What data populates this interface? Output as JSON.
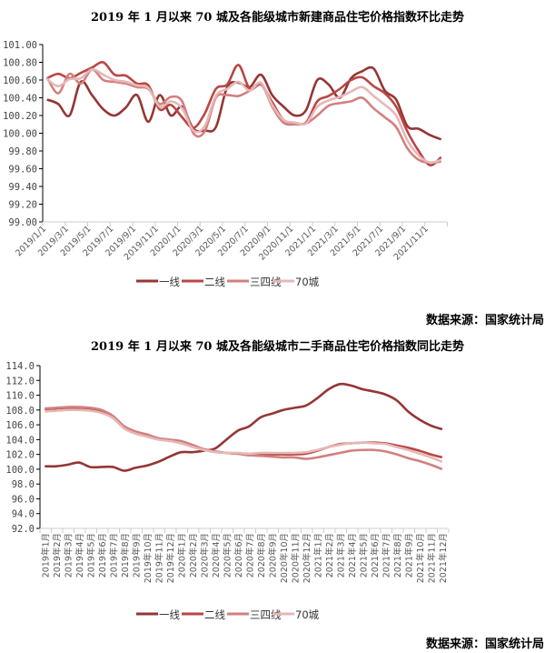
{
  "charts_meta": {
    "source": "数据来源：国家统计局"
  },
  "chart_data": [
    {
      "type": "line",
      "title": "2019 年 1 月以来 70 城及各能级城市新建商品住宅价格指数环比走势",
      "ylim": [
        99.0,
        101.0
      ],
      "yticks": [
        "101.00",
        "100.80",
        "100.60",
        "100.40",
        "100.20",
        "100.00",
        "99.80",
        "99.60",
        "99.40",
        "99.20",
        "99.00"
      ],
      "xticks": [
        "2019/1/1",
        "2019/3/1",
        "2019/5/1",
        "2019/7/1",
        "2019/9/1",
        "2019/11/1",
        "2020/1/1",
        "2020/3/1",
        "2020/5/1",
        "2020/7/1",
        "2020/9/1",
        "2020/11/1",
        "2021/1/1",
        "2021/3/1",
        "2021/5/1",
        "2021/7/1",
        "2021/9/1",
        "2021/11/1"
      ],
      "legend": "bottom",
      "series": [
        {
          "name": "一线",
          "color": "#943634",
          "values": [
            100.38,
            100.33,
            100.2,
            100.58,
            100.43,
            100.27,
            100.2,
            100.29,
            100.43,
            100.13,
            100.43,
            100.2,
            100.3,
            100.05,
            100.03,
            100.07,
            100.52,
            100.57,
            100.52,
            100.66,
            100.43,
            100.3,
            100.2,
            100.26,
            100.6,
            100.55,
            100.4,
            100.62,
            100.7,
            100.73,
            100.48,
            100.38,
            100.08,
            100.05,
            99.98,
            99.93
          ]
        },
        {
          "name": "二线",
          "color": "#b84744",
          "values": [
            100.62,
            100.67,
            100.62,
            100.68,
            100.74,
            100.8,
            100.66,
            100.65,
            100.56,
            100.54,
            100.27,
            100.32,
            100.18,
            100.06,
            100.22,
            100.5,
            100.55,
            100.77,
            100.5,
            100.55,
            100.35,
            100.15,
            100.12,
            100.12,
            100.36,
            100.42,
            100.5,
            100.6,
            100.63,
            100.53,
            100.45,
            100.3,
            100.02,
            99.8,
            99.64,
            99.73
          ]
        },
        {
          "name": "三四线",
          "color": "#d2807e",
          "values": [
            100.63,
            100.45,
            100.67,
            100.56,
            100.72,
            100.6,
            100.58,
            100.56,
            100.52,
            100.5,
            100.33,
            100.41,
            100.36,
            100.0,
            100.02,
            100.4,
            100.43,
            100.42,
            100.48,
            100.56,
            100.3,
            100.12,
            100.1,
            100.11,
            100.2,
            100.31,
            100.34,
            100.36,
            100.4,
            100.28,
            100.18,
            100.07,
            99.83,
            99.7,
            99.67,
            99.68
          ]
        },
        {
          "name": "70城",
          "color": "#e6b8b7",
          "values": [
            100.61,
            100.53,
            100.61,
            100.62,
            100.72,
            100.66,
            100.6,
            100.58,
            100.54,
            100.51,
            100.3,
            100.36,
            100.28,
            100.03,
            100.08,
            100.42,
            100.5,
            100.58,
            100.48,
            100.57,
            100.32,
            100.15,
            100.12,
            100.11,
            100.3,
            100.37,
            100.41,
            100.47,
            100.52,
            100.42,
            100.32,
            100.2,
            99.92,
            99.75,
            99.67,
            99.7
          ]
        }
      ]
    },
    {
      "type": "line",
      "title": "2019 年 1 月以来 70 城及各能级城市二手商品住宅价格指数同比走势",
      "ylim": [
        92.0,
        114.0
      ],
      "yticks": [
        "114.0",
        "112.0",
        "110.0",
        "108.0",
        "106.0",
        "104.0",
        "102.0",
        "100.0",
        "98.0",
        "96.0",
        "94.0",
        "92.0"
      ],
      "categories": [
        "2019年1月",
        "2019年2月",
        "2019年3月",
        "2019年4月",
        "2019年5月",
        "2019年6月",
        "2019年7月",
        "2019年8月",
        "2019年9月",
        "2019年10月",
        "2019年11月",
        "2019年12月",
        "2020年1月",
        "2020年2月",
        "2020年3月",
        "2020年4月",
        "2020年5月",
        "2020年6月",
        "2020年7月",
        "2020年8月",
        "2020年9月",
        "2020年10月",
        "2020年11月",
        "2020年12月",
        "2021年1月",
        "2021年2月",
        "2021年3月",
        "2021年4月",
        "2021年5月",
        "2021年6月",
        "2021年7月",
        "2021年8月",
        "2021年9月",
        "2021年10月",
        "2021年11月",
        "2021年12月"
      ],
      "legend": "bottom",
      "series": [
        {
          "name": "一线",
          "color": "#943634",
          "values": [
            100.4,
            100.4,
            100.6,
            100.9,
            100.3,
            100.3,
            100.3,
            99.8,
            100.2,
            100.5,
            101.0,
            101.7,
            102.3,
            102.3,
            102.5,
            102.8,
            104.0,
            105.2,
            105.8,
            107.0,
            107.5,
            108.0,
            108.3,
            108.6,
            109.6,
            110.8,
            111.5,
            111.3,
            110.8,
            110.5,
            110.1,
            109.3,
            107.8,
            106.7,
            105.9,
            105.4
          ]
        },
        {
          "name": "二线",
          "color": "#b84744",
          "values": [
            108.1,
            108.2,
            108.3,
            108.3,
            108.2,
            107.9,
            107.1,
            105.7,
            105.0,
            104.6,
            104.1,
            103.9,
            103.7,
            103.2,
            102.7,
            102.4,
            102.2,
            102.1,
            101.9,
            102.0,
            102.0,
            102.0,
            102.0,
            102.1,
            102.5,
            103.0,
            103.4,
            103.5,
            103.6,
            103.6,
            103.5,
            103.2,
            102.9,
            102.5,
            102.0,
            101.6
          ]
        },
        {
          "name": "三四线",
          "color": "#d2807e",
          "values": [
            108.2,
            108.3,
            108.4,
            108.4,
            108.3,
            108.0,
            107.2,
            105.8,
            105.1,
            104.7,
            104.2,
            104.0,
            103.8,
            103.3,
            102.7,
            102.4,
            102.2,
            102.1,
            101.9,
            101.8,
            101.7,
            101.6,
            101.6,
            101.4,
            101.6,
            101.9,
            102.2,
            102.5,
            102.6,
            102.6,
            102.4,
            102.0,
            101.5,
            101.1,
            100.6,
            100.0
          ]
        },
        {
          "name": "70城",
          "color": "#e6b8b7",
          "values": [
            107.8,
            107.9,
            108.0,
            108.0,
            107.9,
            107.6,
            106.9,
            105.5,
            104.8,
            104.4,
            104.0,
            103.8,
            103.5,
            103.0,
            102.6,
            102.3,
            102.2,
            102.2,
            102.1,
            102.2,
            102.2,
            102.2,
            102.2,
            102.3,
            102.6,
            103.0,
            103.3,
            103.5,
            103.6,
            103.5,
            103.4,
            103.0,
            102.6,
            102.1,
            101.6,
            101.0
          ]
        }
      ]
    }
  ]
}
